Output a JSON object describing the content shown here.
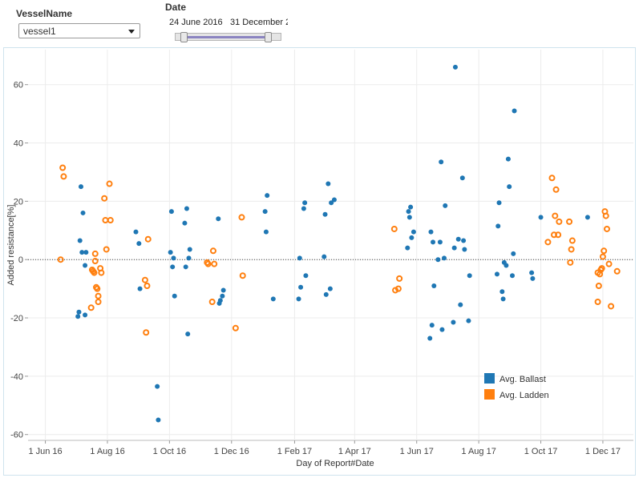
{
  "filters": {
    "vessel": {
      "label": "VesselName",
      "selected": "vessel1"
    },
    "date": {
      "label": "Date",
      "start": "24 June 2016",
      "end": "31 December 2"
    }
  },
  "colors": {
    "ballast": "#1f77b4",
    "ladden": "#ff7f0e"
  },
  "chart_data": {
    "type": "scatter",
    "xlabel": "Day of Report#Date",
    "ylabel": "Added resistance[%]",
    "x_ticks": [
      "1 Jun 16",
      "1 Aug 16",
      "1 Oct 16",
      "1 Dec 16",
      "1 Feb 17",
      "1 Apr 17",
      "1 Jun 17",
      "1 Aug 17",
      "1 Oct 17",
      "1 Dec 17"
    ],
    "xlim": [
      "2016-05-15",
      "2017-12-31"
    ],
    "ylim": [
      -62,
      72
    ],
    "y_ticks": [
      -60,
      -40,
      -20,
      0,
      20,
      40,
      60
    ],
    "reference_line": 0,
    "grid": true,
    "legend_position": "bottom-right",
    "series": [
      {
        "name": "Avg. Ballast",
        "marker": "filled-circle",
        "points": [
          [
            "2016-07-03",
            -19.5
          ],
          [
            "2016-07-04",
            -18
          ],
          [
            "2016-07-05",
            6.5
          ],
          [
            "2016-07-06",
            25
          ],
          [
            "2016-07-07",
            2.5
          ],
          [
            "2016-07-08",
            16
          ],
          [
            "2016-07-10",
            -2
          ],
          [
            "2016-07-10",
            -19
          ],
          [
            "2016-07-11",
            2.5
          ],
          [
            "2016-08-29",
            9.5
          ],
          [
            "2016-09-01",
            5.5
          ],
          [
            "2016-09-02",
            -10
          ],
          [
            "2016-09-19",
            -43.5
          ],
          [
            "2016-09-20",
            -55
          ],
          [
            "2016-10-02",
            2.5
          ],
          [
            "2016-10-03",
            16.5
          ],
          [
            "2016-10-04",
            -2.5
          ],
          [
            "2016-10-05",
            0.5
          ],
          [
            "2016-10-06",
            -12.5
          ],
          [
            "2016-10-16",
            12.5
          ],
          [
            "2016-10-17",
            -2.5
          ],
          [
            "2016-10-18",
            17.5
          ],
          [
            "2016-10-19",
            -25.5
          ],
          [
            "2016-10-20",
            0.5
          ],
          [
            "2016-10-21",
            3.5
          ],
          [
            "2016-11-18",
            14
          ],
          [
            "2016-11-19",
            -15
          ],
          [
            "2016-11-20",
            -14
          ],
          [
            "2016-11-22",
            -12.5
          ],
          [
            "2016-11-23",
            -10.5
          ],
          [
            "2017-01-03",
            16.5
          ],
          [
            "2017-01-04",
            9.5
          ],
          [
            "2017-01-05",
            22
          ],
          [
            "2017-01-11",
            -13.5
          ],
          [
            "2017-02-05",
            -13.5
          ],
          [
            "2017-02-06",
            0.5
          ],
          [
            "2017-02-07",
            -9.5
          ],
          [
            "2017-02-10",
            17.5
          ],
          [
            "2017-02-11",
            19.5
          ],
          [
            "2017-02-12",
            -5.5
          ],
          [
            "2017-03-02",
            1
          ],
          [
            "2017-03-03",
            15.5
          ],
          [
            "2017-03-04",
            -12
          ],
          [
            "2017-03-06",
            26
          ],
          [
            "2017-03-08",
            -10
          ],
          [
            "2017-03-09",
            19.5
          ],
          [
            "2017-03-12",
            20.5
          ],
          [
            "2017-05-23",
            4
          ],
          [
            "2017-05-24",
            16.5
          ],
          [
            "2017-05-25",
            14.5
          ],
          [
            "2017-05-26",
            18
          ],
          [
            "2017-05-27",
            7.5
          ],
          [
            "2017-05-29",
            9.5
          ],
          [
            "2017-06-14",
            -27
          ],
          [
            "2017-06-15",
            9.5
          ],
          [
            "2017-06-16",
            -22.5
          ],
          [
            "2017-06-17",
            6
          ],
          [
            "2017-06-18",
            -9
          ],
          [
            "2017-06-22",
            0
          ],
          [
            "2017-06-24",
            6
          ],
          [
            "2017-06-25",
            33.5
          ],
          [
            "2017-06-26",
            -24
          ],
          [
            "2017-06-28",
            0.5
          ],
          [
            "2017-06-29",
            18.5
          ],
          [
            "2017-07-07",
            -21.5
          ],
          [
            "2017-07-08",
            4
          ],
          [
            "2017-07-09",
            66
          ],
          [
            "2017-07-12",
            7
          ],
          [
            "2017-07-14",
            -15.5
          ],
          [
            "2017-07-16",
            28
          ],
          [
            "2017-07-17",
            6.5
          ],
          [
            "2017-07-18",
            3.5
          ],
          [
            "2017-07-22",
            -21
          ],
          [
            "2017-07-23",
            -5.5
          ],
          [
            "2017-08-19",
            -5
          ],
          [
            "2017-08-20",
            11.5
          ],
          [
            "2017-08-21",
            19.5
          ],
          [
            "2017-08-24",
            -11
          ],
          [
            "2017-08-25",
            -13.5
          ],
          [
            "2017-08-26",
            -1
          ],
          [
            "2017-08-28",
            -2
          ],
          [
            "2017-08-30",
            34.5
          ],
          [
            "2017-08-31",
            25
          ],
          [
            "2017-09-03",
            -5.5
          ],
          [
            "2017-09-04",
            2
          ],
          [
            "2017-09-05",
            51
          ],
          [
            "2017-09-22",
            -4.5
          ],
          [
            "2017-09-23",
            -6.5
          ],
          [
            "2017-10-01",
            14.5
          ],
          [
            "2017-11-16",
            14.5
          ]
        ]
      },
      {
        "name": "Avg. Ladden",
        "marker": "open-circle",
        "points": [
          [
            "2016-06-16",
            0
          ],
          [
            "2016-06-18",
            31.5
          ],
          [
            "2016-06-19",
            28.5
          ],
          [
            "2016-07-16",
            -16.5
          ],
          [
            "2016-07-17",
            -3.5
          ],
          [
            "2016-07-18",
            -4
          ],
          [
            "2016-07-19",
            -4.5
          ],
          [
            "2016-07-20",
            2
          ],
          [
            "2016-07-20",
            -0.5
          ],
          [
            "2016-07-21",
            -9.5
          ],
          [
            "2016-07-22",
            -10
          ],
          [
            "2016-07-23",
            -12.5
          ],
          [
            "2016-07-23",
            -14.5
          ],
          [
            "2016-07-25",
            -3
          ],
          [
            "2016-07-26",
            -4.5
          ],
          [
            "2016-07-29",
            21
          ],
          [
            "2016-07-30",
            13.5
          ],
          [
            "2016-07-31",
            3.5
          ],
          [
            "2016-08-03",
            26
          ],
          [
            "2016-08-04",
            13.5
          ],
          [
            "2016-09-07",
            -7
          ],
          [
            "2016-09-08",
            -25
          ],
          [
            "2016-09-09",
            -9
          ],
          [
            "2016-09-10",
            7
          ],
          [
            "2016-11-07",
            -1
          ],
          [
            "2016-11-08",
            -1.5
          ],
          [
            "2016-11-12",
            -14.5
          ],
          [
            "2016-11-13",
            3
          ],
          [
            "2016-11-14",
            -1.5
          ],
          [
            "2016-12-05",
            -23.5
          ],
          [
            "2016-12-11",
            14.5
          ],
          [
            "2016-12-12",
            -5.5
          ],
          [
            "2017-05-10",
            10.5
          ],
          [
            "2017-05-11",
            -10.5
          ],
          [
            "2017-05-14",
            -10
          ],
          [
            "2017-05-15",
            -6.5
          ],
          [
            "2017-10-08",
            6
          ],
          [
            "2017-10-12",
            28
          ],
          [
            "2017-10-14",
            8.5
          ],
          [
            "2017-10-15",
            15
          ],
          [
            "2017-10-16",
            24
          ],
          [
            "2017-10-18",
            8.5
          ],
          [
            "2017-10-19",
            13
          ],
          [
            "2017-10-29",
            13
          ],
          [
            "2017-10-30",
            -1
          ],
          [
            "2017-10-31",
            3.5
          ],
          [
            "2017-11-01",
            6.5
          ],
          [
            "2017-11-26",
            -14.5
          ],
          [
            "2017-11-26",
            -4.5
          ],
          [
            "2017-11-27",
            -9
          ],
          [
            "2017-11-28",
            -5
          ],
          [
            "2017-11-29",
            -3.5
          ],
          [
            "2017-11-30",
            -3
          ],
          [
            "2017-12-01",
            1
          ],
          [
            "2017-12-02",
            3
          ],
          [
            "2017-12-03",
            16.5
          ],
          [
            "2017-12-04",
            15
          ],
          [
            "2017-12-05",
            10.5
          ],
          [
            "2017-12-07",
            -1.5
          ],
          [
            "2017-12-09",
            -16
          ],
          [
            "2017-12-15",
            -4
          ]
        ]
      }
    ]
  }
}
